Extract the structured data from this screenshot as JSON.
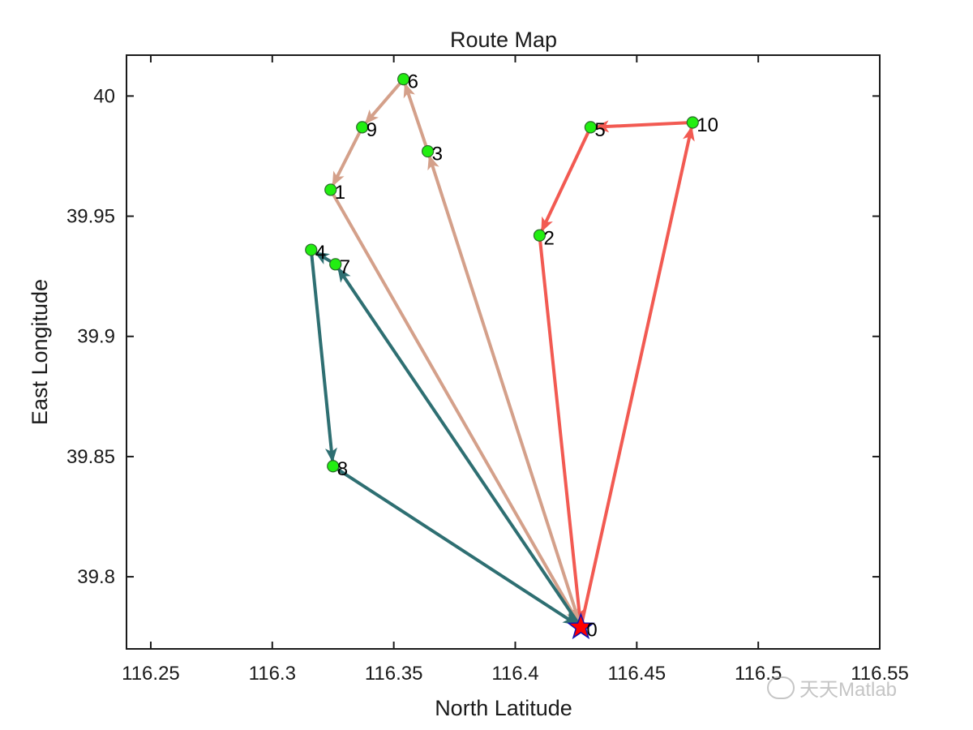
{
  "chart_data": {
    "type": "line",
    "title": "Route Map",
    "xlabel": "North Latitude",
    "ylabel": "East Longitude",
    "xlim": [
      116.24,
      116.55
    ],
    "ylim": [
      39.77,
      40.017
    ],
    "xticks": [
      116.25,
      116.3,
      116.35,
      116.4,
      116.45,
      116.5,
      116.55
    ],
    "xtick_labels": [
      "116.25",
      "116.3",
      "116.35",
      "116.4",
      "116.45",
      "116.5",
      "116.55"
    ],
    "yticks": [
      39.8,
      39.85,
      39.9,
      39.95,
      40.0
    ],
    "ytick_labels": [
      "39.8",
      "39.85",
      "39.9",
      "39.95",
      "40"
    ],
    "grid": false,
    "depot": {
      "label": "0",
      "x": 116.427,
      "y": 39.779,
      "marker": "star",
      "color": "#ff0000",
      "edge": "#1010b0"
    },
    "nodes": [
      {
        "label": "1",
        "x": 116.324,
        "y": 39.961
      },
      {
        "label": "2",
        "x": 116.41,
        "y": 39.942
      },
      {
        "label": "3",
        "x": 116.364,
        "y": 39.977
      },
      {
        "label": "4",
        "x": 116.316,
        "y": 39.936
      },
      {
        "label": "5",
        "x": 116.431,
        "y": 39.987
      },
      {
        "label": "6",
        "x": 116.354,
        "y": 40.007
      },
      {
        "label": "7",
        "x": 116.326,
        "y": 39.93
      },
      {
        "label": "8",
        "x": 116.325,
        "y": 39.846
      },
      {
        "label": "9",
        "x": 116.337,
        "y": 39.987
      },
      {
        "label": "10",
        "x": 116.473,
        "y": 39.989
      }
    ],
    "node_color": "#22ee11",
    "routes": [
      {
        "color": "#f25a52",
        "stops": [
          "0",
          "10",
          "5",
          "2",
          "0"
        ]
      },
      {
        "color": "#d4a08a",
        "stops": [
          "0",
          "3",
          "6",
          "9",
          "1",
          "0"
        ]
      },
      {
        "color": "#2e6f72",
        "stops": [
          "0",
          "7",
          "4",
          "8",
          "0"
        ]
      }
    ]
  },
  "watermark": "天天Matlab"
}
